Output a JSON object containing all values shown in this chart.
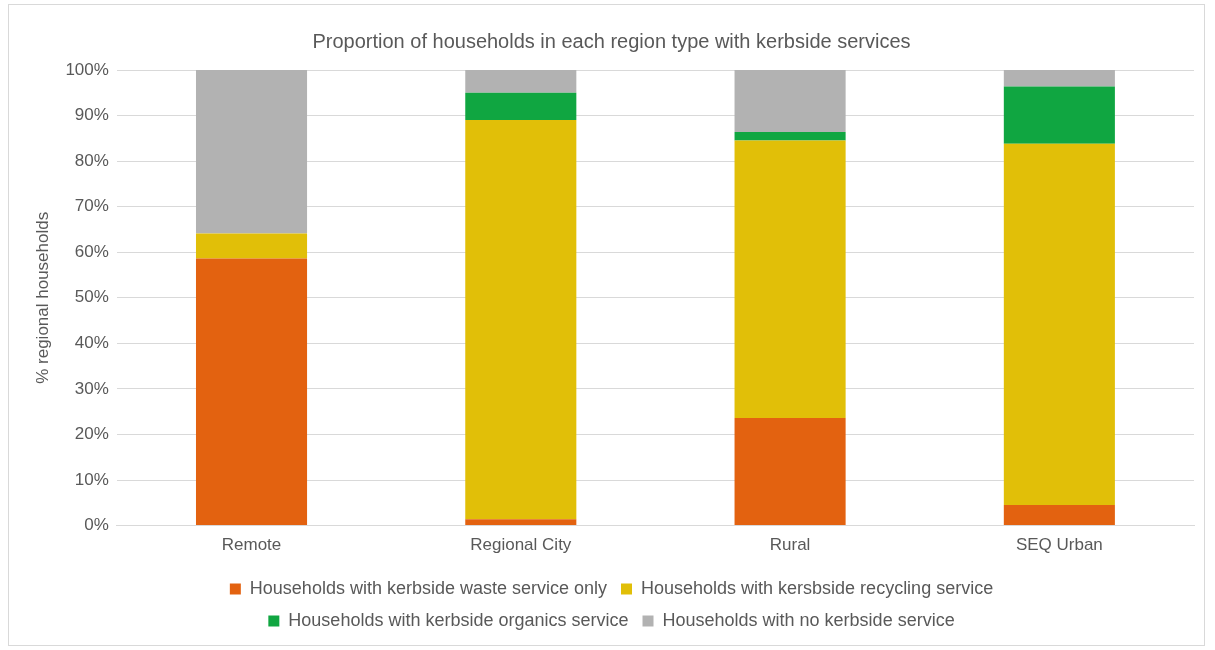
{
  "chart_data": {
    "type": "bar",
    "title": "Proportion of households in each region type with kerbside services",
    "ylabel": "% regional households",
    "categories": [
      "Remote",
      "Regional City",
      "Rural",
      "SEQ Urban"
    ],
    "stacked": true,
    "series": [
      {
        "name": "Households with kerbside waste service only",
        "color": "#e36210",
        "values": [
          58.6,
          1.4,
          23.6,
          4.5
        ]
      },
      {
        "name": "Households with kersbside recycling service",
        "color": "#e1bf08",
        "values": [
          5.5,
          87.6,
          60.9,
          79.3
        ]
      },
      {
        "name": "Households with kerbside organics service",
        "color": "#10a641",
        "values": [
          0,
          6,
          1.9,
          12.6
        ]
      },
      {
        "name": "Households with no kerbside service",
        "color": "#b2b2b2",
        "values": [
          35.9,
          5,
          13.6,
          3.6
        ]
      }
    ],
    "ylim": [
      0,
      100
    ],
    "yticks": [
      {
        "value": 0,
        "label": "0%"
      },
      {
        "value": 10,
        "label": "10%"
      },
      {
        "value": 20,
        "label": "20%"
      },
      {
        "value": 30,
        "label": "30%"
      },
      {
        "value": 40,
        "label": "40%"
      },
      {
        "value": 50,
        "label": "50%"
      },
      {
        "value": 60,
        "label": "60%"
      },
      {
        "value": 70,
        "label": "70%"
      },
      {
        "value": 80,
        "label": "80%"
      },
      {
        "value": 90,
        "label": "90%"
      },
      {
        "value": 100,
        "label": "100%"
      }
    ],
    "grid": "y",
    "legend": "bottom"
  }
}
